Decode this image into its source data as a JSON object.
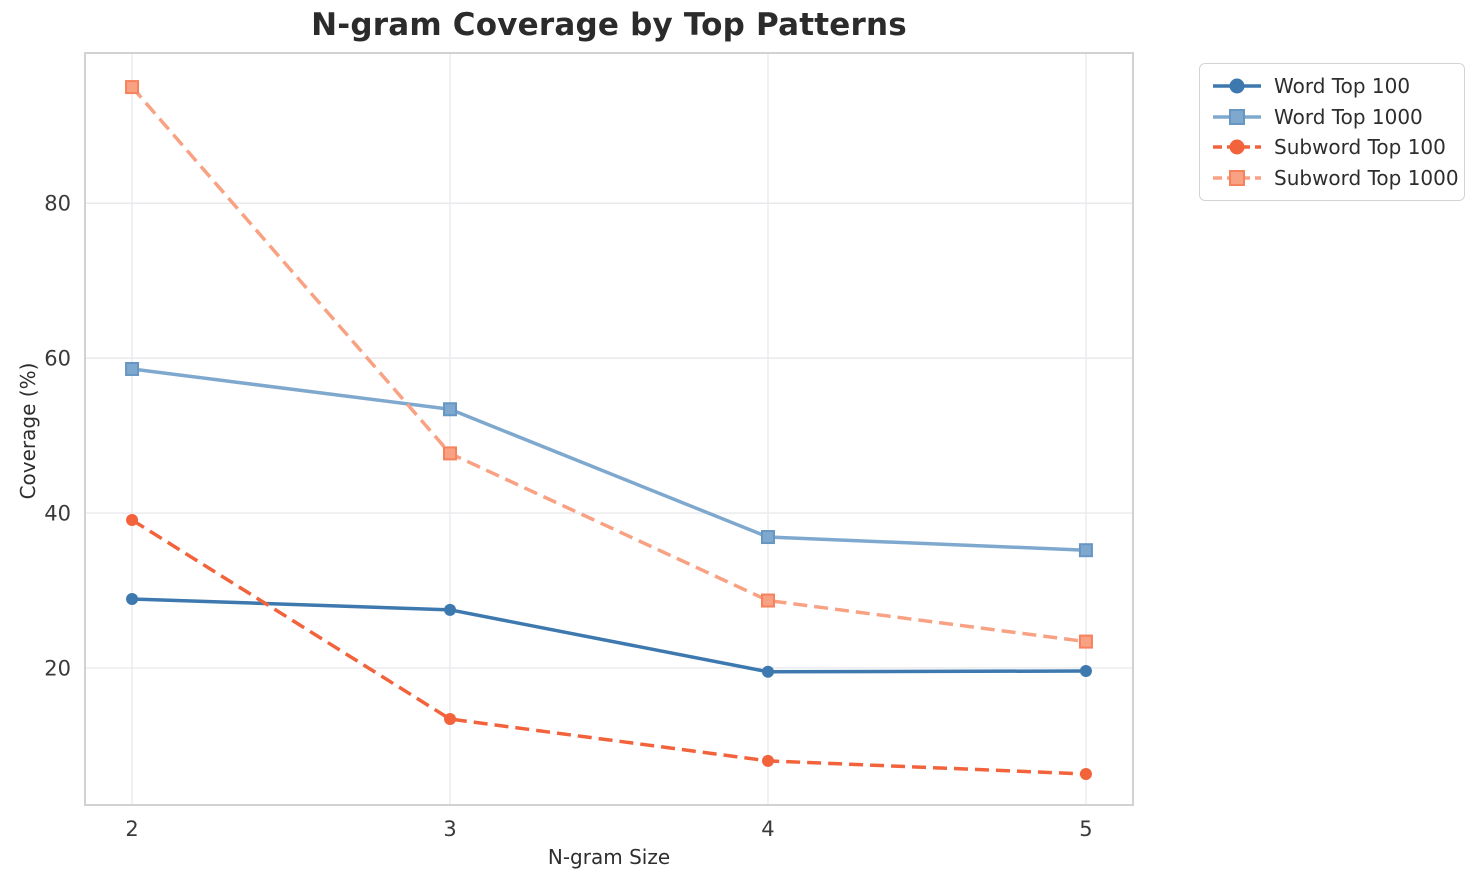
{
  "figure": {
    "background": "#ffffff",
    "title_color": "#2b2b2b",
    "tick_label_color": "#3a3a3a",
    "axis_label_color": "#2e2e2e",
    "grid_color": "#eaeaee",
    "spine_color": "#d2d2d2",
    "legend_border_color": "#d3d3d3"
  },
  "chart_data": {
    "type": "line",
    "title": "N-gram Coverage by Top Patterns",
    "xlabel": "N-gram Size",
    "ylabel": "Coverage (%)",
    "x": [
      2,
      3,
      4,
      5
    ],
    "xtick_labels": [
      "2",
      "3",
      "4",
      "5"
    ],
    "ytick_values": [
      20,
      40,
      60,
      80
    ],
    "ytick_labels": [
      "20",
      "40",
      "60",
      "80"
    ],
    "xlim": [
      1.852,
      5.148
    ],
    "ylim": [
      2.3,
      99.4
    ],
    "grid": true,
    "legend_position": "outside-upper-right",
    "series": [
      {
        "name": "Word Top 100",
        "values": [
          28.9,
          27.5,
          19.5,
          19.6
        ],
        "color": "#3d79ae",
        "marker": "circle",
        "line_style": "solid"
      },
      {
        "name": "Word Top 1000",
        "values": [
          58.6,
          53.4,
          36.9,
          35.2
        ],
        "color": "#7fa8ce",
        "marker_edge": "#6796c2",
        "marker": "square",
        "line_style": "solid"
      },
      {
        "name": "Subword Top 100",
        "values": [
          39.1,
          13.4,
          8.0,
          6.3
        ],
        "color": "#f2633c",
        "marker": "circle",
        "line_style": "dashed"
      },
      {
        "name": "Subword Top 1000",
        "values": [
          95.0,
          47.7,
          28.7,
          23.4
        ],
        "color": "#f9a183",
        "marker_edge": "#f5815d",
        "marker": "square",
        "line_style": "dashed"
      }
    ]
  }
}
